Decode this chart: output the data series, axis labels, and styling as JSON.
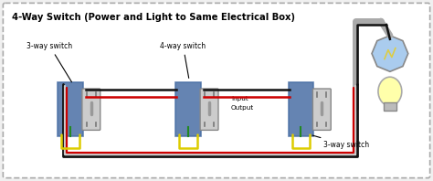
{
  "title": "4-Way Switch (Power and Light to Same Electrical Box)",
  "bg_color": "#f0f0f0",
  "border_color": "#aaaaaa",
  "labels": {
    "3way_left": "3-way switch",
    "4way_mid": "4-way switch",
    "input": "Input",
    "output": "Output",
    "3way_right": "3-way switch"
  },
  "wire_colors": {
    "black": "#111111",
    "red": "#cc0000",
    "white": "#dddddd",
    "yellow": "#ddcc00",
    "green": "#228822",
    "gray": "#999999"
  },
  "box_color": "#4a6fa5",
  "switch_color": "#cccccc",
  "switch_outline": "#888888",
  "light_color": "#ffffaa",
  "light_outline": "#888888"
}
